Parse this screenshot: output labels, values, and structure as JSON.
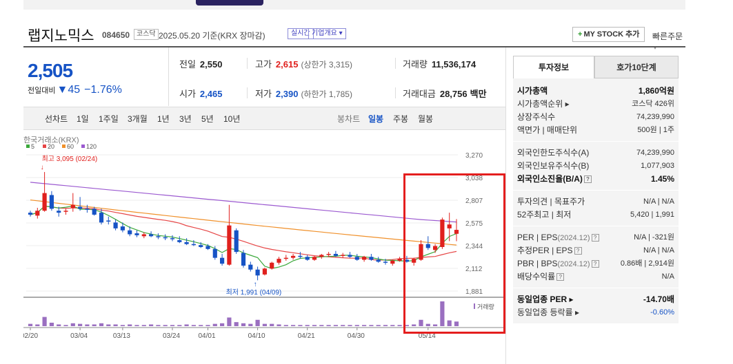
{
  "stock": {
    "name": "랩지노믹스",
    "code": "084650",
    "market": "코스닥",
    "date_text": "2025.05.20 기준(KRX 장마감)",
    "realtime_label": "실시간",
    "corp_info_label": "기업개요 ▾",
    "mystock_label": "MY STOCK 추가",
    "quick_order_label": "빠른주문"
  },
  "price": {
    "current": "2,505",
    "change_label": "전일대비",
    "change_amount": "▼45",
    "change_pct": "−1.76%"
  },
  "stats": {
    "prev_label": "전일",
    "prev": "2,550",
    "open_label": "시가",
    "open": "2,465",
    "high_label": "고가",
    "high": "2,615",
    "high_sub": "(상한가 3,315)",
    "low_label": "저가",
    "low": "2,390",
    "low_sub": "(하한가 1,785)",
    "volume_label": "거래량",
    "volume": "11,536,174",
    "amount_label": "거래대금",
    "amount": "28,756",
    "amount_unit": "백만"
  },
  "period_bar": {
    "items": [
      "선차트",
      "1일",
      "1주일",
      "3개월",
      "1년",
      "3년",
      "5년",
      "10년"
    ],
    "candle_label": "봉차트",
    "candle_items": [
      "일봉",
      "주봉",
      "월봉"
    ],
    "active": "일봉"
  },
  "chart_data": {
    "type": "candlestick",
    "source": "한국거래소(KRX)",
    "legend": [
      {
        "name": "5",
        "color": "#3aa83a"
      },
      {
        "name": "20",
        "color": "#e64545"
      },
      {
        "name": "60",
        "color": "#f0902a"
      },
      {
        "name": "120",
        "color": "#9b59d0"
      }
    ],
    "y_ticks": [
      "3,270",
      "3,038",
      "2,807",
      "2,575",
      "2,344",
      "2,112",
      "1,881"
    ],
    "ylim": [
      1881,
      3270
    ],
    "x_ticks": [
      "02/20",
      "03/04",
      "03/13",
      "03/24",
      "04/01",
      "04/10",
      "04/21",
      "04/30",
      "05/14"
    ],
    "high_annotation": "최고 3,095 (02/24)",
    "low_annotation": "최저 1,991 (04/09)",
    "volume_label": "거래량",
    "candles": [
      [
        2680,
        2700,
        2640,
        2660
      ],
      [
        2650,
        2730,
        2620,
        2700
      ],
      [
        2700,
        3095,
        2690,
        2880
      ],
      [
        2860,
        2900,
        2700,
        2720
      ],
      [
        2700,
        2740,
        2640,
        2680
      ],
      [
        2690,
        2720,
        2660,
        2700
      ],
      [
        2730,
        2880,
        2690,
        2760
      ],
      [
        2740,
        2840,
        2700,
        2720
      ],
      [
        2720,
        2760,
        2680,
        2710
      ],
      [
        2720,
        2740,
        2650,
        2660
      ],
      [
        2680,
        2720,
        2560,
        2580
      ],
      [
        2600,
        2640,
        2560,
        2590
      ],
      [
        2580,
        2610,
        2500,
        2520
      ],
      [
        2540,
        2580,
        2480,
        2500
      ],
      [
        2500,
        2540,
        2440,
        2460
      ],
      [
        2470,
        2500,
        2430,
        2450
      ],
      [
        2440,
        2480,
        2420,
        2460
      ],
      [
        2460,
        2490,
        2430,
        2440
      ],
      [
        2440,
        2470,
        2410,
        2430
      ],
      [
        2430,
        2460,
        2400,
        2420
      ],
      [
        2420,
        2450,
        2390,
        2410
      ],
      [
        2400,
        2440,
        2370,
        2380
      ],
      [
        2380,
        2420,
        2350,
        2360
      ],
      [
        2360,
        2400,
        2340,
        2350
      ],
      [
        2350,
        2380,
        2320,
        2330
      ],
      [
        2340,
        2360,
        2300,
        2310
      ],
      [
        2310,
        2340,
        2200,
        2220
      ],
      [
        2220,
        2260,
        2140,
        2160
      ],
      [
        2150,
        2760,
        2140,
        2550
      ],
      [
        2500,
        2520,
        2260,
        2280
      ],
      [
        2270,
        2300,
        2120,
        2140
      ],
      [
        2150,
        2180,
        2080,
        2100
      ],
      [
        2100,
        2130,
        1991,
        2040
      ],
      [
        2050,
        2120,
        2040,
        2110
      ],
      [
        2110,
        2180,
        2100,
        2170
      ],
      [
        2170,
        2230,
        2150,
        2210
      ],
      [
        2210,
        2250,
        2190,
        2220
      ],
      [
        2220,
        2260,
        2200,
        2240
      ],
      [
        2240,
        2280,
        2210,
        2230
      ],
      [
        2230,
        2250,
        2190,
        2200
      ],
      [
        2200,
        2240,
        2190,
        2230
      ],
      [
        2230,
        2260,
        2210,
        2250
      ],
      [
        2250,
        2280,
        2230,
        2260
      ],
      [
        2260,
        2290,
        2230,
        2240
      ],
      [
        2240,
        2270,
        2220,
        2250
      ],
      [
        2250,
        2280,
        2220,
        2230
      ],
      [
        2230,
        2260,
        2190,
        2200
      ],
      [
        2200,
        2240,
        2180,
        2230
      ],
      [
        2230,
        2260,
        2190,
        2200
      ],
      [
        2200,
        2230,
        2170,
        2180
      ],
      [
        2180,
        2210,
        2150,
        2170
      ],
      [
        2160,
        2200,
        2140,
        2190
      ],
      [
        2190,
        2230,
        2180,
        2210
      ],
      [
        2200,
        2240,
        2170,
        2180
      ],
      [
        2170,
        2220,
        2140,
        2210
      ],
      [
        2200,
        2400,
        2190,
        2360
      ],
      [
        2360,
        2440,
        2300,
        2320
      ],
      [
        2300,
        2360,
        2270,
        2340
      ],
      [
        2330,
        2630,
        2310,
        2610
      ],
      [
        2520,
        2680,
        2390,
        2560
      ],
      [
        2465,
        2615,
        2390,
        2505
      ]
    ],
    "volume": [
      0.4,
      0.3,
      1.6,
      0.6,
      0.3,
      0.2,
      0.5,
      0.4,
      0.3,
      0.3,
      0.5,
      0.3,
      0.3,
      0.2,
      0.3,
      0.2,
      0.2,
      0.3,
      0.2,
      0.2,
      0.2,
      0.2,
      0.3,
      0.2,
      0.2,
      0.2,
      0.4,
      0.5,
      1.5,
      0.7,
      0.5,
      0.4,
      1.1,
      0.4,
      0.4,
      0.3,
      0.2,
      0.2,
      0.2,
      0.2,
      0.2,
      0.2,
      0.2,
      0.2,
      0.2,
      0.2,
      0.2,
      0.2,
      0.2,
      0.2,
      0.2,
      0.2,
      0.2,
      0.2,
      0.3,
      1.1,
      0.4,
      0.3,
      4.3,
      1.0,
      0.8
    ]
  },
  "side": {
    "tab_invest": "투자정보",
    "tab_orderbook": "호가10단계",
    "rows": [
      {
        "k": "시가총액",
        "v": "1,860억원"
      },
      {
        "k": "시가총액순위 ▸",
        "v": "코스닥 426위"
      },
      {
        "k": "상장주식수",
        "v": "74,239,990"
      },
      {
        "k": "액면가 | 매매단위",
        "v": "500원 | 1주"
      },
      {
        "k": "외국인한도주식수(A)",
        "v": "74,239,990"
      },
      {
        "k": "외국인보유주식수(B)",
        "v": "1,077,903"
      },
      {
        "k": "외국인소진율(B/A)",
        "v": "1.45%"
      },
      {
        "k": "투자의견 | 목표주가",
        "v": "N/A | N/A"
      },
      {
        "k": "52주최고 | 최저",
        "v": "5,420 | 1,991"
      },
      {
        "k": "PER | EPS",
        "k_sub": "(2024.12)",
        "v": "N/A | -321원"
      },
      {
        "k": "추정PER | EPS",
        "v": "N/A | N/A"
      },
      {
        "k": "PBR | BPS",
        "k_sub": "(2024.12)",
        "v": "0.86배 | 2,914원"
      },
      {
        "k": "배당수익률",
        "v": "N/A"
      },
      {
        "k": "동일업종 PER ▸",
        "v": "-14.70배"
      },
      {
        "k": "동일업종 등락률 ▸",
        "v": "-0.60%"
      }
    ]
  },
  "colors": {
    "up": "#e0201d",
    "down": "#1653c5",
    "accent": "#1653c5",
    "highlight": "#e41e1e"
  }
}
